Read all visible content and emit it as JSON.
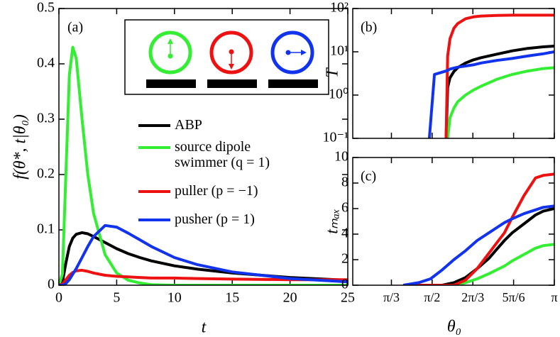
{
  "chart_data": [
    {
      "type": "line",
      "label": "(a)",
      "xlabel": "t",
      "ylabel": "f(θ*, t|θ₀)",
      "xlim": [
        0,
        25
      ],
      "ylim": [
        0,
        0.5
      ],
      "xticks": [
        0,
        5,
        10,
        15,
        20,
        25
      ],
      "yticks": [
        0,
        0.1,
        0.2,
        0.3,
        0.4,
        0.5
      ],
      "x": [
        0,
        0.3,
        0.6,
        0.9,
        1.2,
        1.5,
        2,
        2.5,
        3,
        4,
        5,
        6,
        7,
        8,
        10,
        12,
        15,
        20,
        25
      ],
      "series": [
        {
          "name": "ABP",
          "color": "#000000",
          "values": [
            0,
            0.005,
            0.04,
            0.07,
            0.085,
            0.092,
            0.095,
            0.093,
            0.088,
            0.077,
            0.066,
            0.057,
            0.05,
            0.044,
            0.035,
            0.029,
            0.022,
            0.014,
            0.009
          ]
        },
        {
          "name": "source dipole swimmer (q = 1)",
          "color": "#33ee33",
          "values": [
            0,
            0.02,
            0.2,
            0.38,
            0.43,
            0.41,
            0.3,
            0.2,
            0.13,
            0.055,
            0.022,
            0.009,
            0.004,
            0.001,
            0,
            0,
            0,
            0,
            0
          ]
        },
        {
          "name": "puller (p = −1)",
          "color": "#ee1111",
          "values": [
            0,
            0.002,
            0.01,
            0.018,
            0.023,
            0.026,
            0.027,
            0.025,
            0.022,
            0.018,
            0.016,
            0.015,
            0.014,
            0.013,
            0.013,
            0.012,
            0.011,
            0.01,
            0.01
          ]
        },
        {
          "name": "pusher (p = 1)",
          "color": "#1133ee",
          "values": [
            0,
            0,
            0.003,
            0.01,
            0.02,
            0.03,
            0.05,
            0.07,
            0.088,
            0.108,
            0.105,
            0.094,
            0.082,
            0.07,
            0.05,
            0.037,
            0.024,
            0.012,
            0.006
          ]
        }
      ]
    },
    {
      "type": "line",
      "label": "(b)",
      "ylabel": "T",
      "yscale": "log",
      "xlim": [
        0.55,
        3.1416
      ],
      "ylim": [
        0.1,
        100
      ],
      "xticks": [
        1.0472,
        1.5708,
        2.0944,
        2.618,
        3.1416
      ],
      "yticks": [
        {
          "value": 0.1,
          "label": "10⁻¹"
        },
        {
          "value": 1,
          "label": "10⁰"
        },
        {
          "value": 10,
          "label": "10¹"
        },
        {
          "value": 100,
          "label": "10²"
        }
      ],
      "x": [
        1.535,
        1.6,
        1.75,
        1.77,
        1.8,
        1.85,
        1.9,
        2.0,
        2.1,
        2.2,
        2.4,
        2.6,
        2.8,
        3.0,
        3.1416
      ],
      "series": [
        {
          "color": "#000000",
          "values": [
            null,
            null,
            0.1,
            1.5,
            2.5,
            3.5,
            4.3,
            5.5,
            6.5,
            7.3,
            8.8,
            10.5,
            12,
            13,
            13.5
          ]
        },
        {
          "color": "#33ee33",
          "values": [
            null,
            null,
            null,
            0.1,
            0.3,
            0.5,
            0.7,
            1,
            1.3,
            1.6,
            2.3,
            3,
            3.6,
            4.1,
            4.3
          ]
        },
        {
          "color": "#ee1111",
          "values": [
            null,
            null,
            0.1,
            8,
            20,
            35,
            45,
            58,
            64,
            67,
            69,
            70,
            70,
            70,
            70
          ]
        },
        {
          "color": "#1133ee",
          "values": [
            0.1,
            3,
            3.6,
            3.7,
            4,
            4.2,
            4.4,
            4.7,
            5,
            5.5,
            6.3,
            7,
            8,
            9,
            10
          ]
        }
      ]
    },
    {
      "type": "line",
      "label": "(c)",
      "xlabel": "θ₀",
      "ylabel": "tₘₐₓ",
      "xlim": [
        0.55,
        3.1416
      ],
      "ylim": [
        0,
        10
      ],
      "xticks": [
        {
          "value": 1.0472,
          "label": "π/3"
        },
        {
          "value": 1.5708,
          "label": "π/2"
        },
        {
          "value": 2.0944,
          "label": "2π/3"
        },
        {
          "value": 2.618,
          "label": "5π/6"
        },
        {
          "value": 3.1416,
          "label": "π"
        }
      ],
      "yticks": [
        0,
        2,
        4,
        6,
        8,
        10
      ],
      "x": [
        1.2,
        1.4,
        1.55,
        1.7,
        1.85,
        2.0,
        2.15,
        2.3,
        2.4,
        2.5,
        2.6,
        2.75,
        2.9,
        3.0,
        3.1416
      ],
      "series": [
        {
          "color": "#000000",
          "values": [
            0,
            0,
            0,
            0,
            0.2,
            0.6,
            1.3,
            2.1,
            2.8,
            3.5,
            4.1,
            4.8,
            5.5,
            5.8,
            6
          ]
        },
        {
          "color": "#33ee33",
          "values": [
            0,
            0,
            0,
            0,
            0,
            0.2,
            0.5,
            0.9,
            1.2,
            1.5,
            1.9,
            2.4,
            2.9,
            3.1,
            3.2
          ]
        },
        {
          "color": "#ee1111",
          "values": [
            0,
            0,
            0,
            0,
            0,
            0.4,
            1.3,
            2.5,
            3.3,
            4.1,
            5.3,
            7,
            8.4,
            8.6,
            8.7
          ]
        },
        {
          "color": "#1133ee",
          "values": [
            0,
            0.2,
            0.5,
            1.2,
            2,
            2.7,
            3.5,
            4.1,
            4.5,
            4.9,
            5.2,
            5.6,
            5.9,
            6.1,
            6.2
          ]
        }
      ]
    }
  ]
}
